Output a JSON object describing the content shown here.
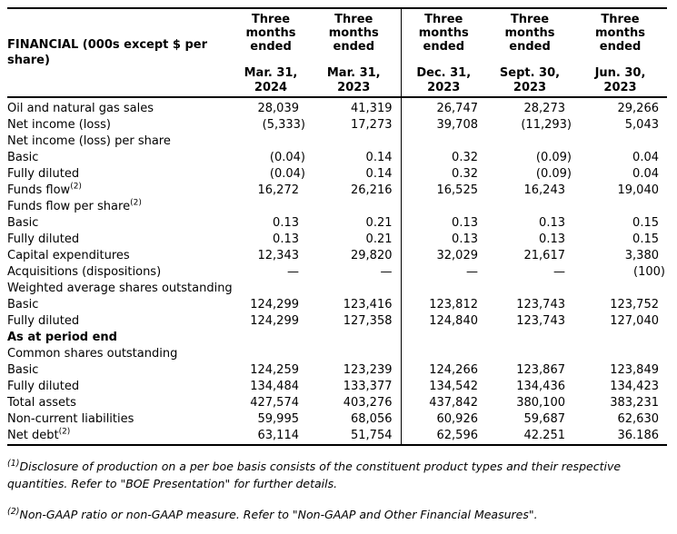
{
  "table": {
    "corner_label": "FINANCIAL (000s except $ per share)",
    "columns": [
      {
        "period": "Three months ended",
        "date": "Mar. 31, 2024"
      },
      {
        "period": "Three months ended",
        "date": "Mar. 31, 2023"
      },
      {
        "period": "Three months ended",
        "date": "Dec. 31, 2023"
      },
      {
        "period": "Three months ended",
        "date": "Sept. 30, 2023"
      },
      {
        "period": "Three months ended",
        "date": "Jun. 30, 2023"
      }
    ],
    "rows": [
      {
        "label": "Oil and natural gas sales",
        "values": [
          "28,039",
          "41,319",
          "26,747",
          "28,273",
          "29,266"
        ]
      },
      {
        "label": "Net income (loss)",
        "values": [
          "(5,333)",
          "17,273",
          "39,708",
          "(11,293)",
          "5,043"
        ]
      },
      {
        "label": "Net income (loss) per share",
        "values": [
          "",
          "",
          "",
          "",
          ""
        ]
      },
      {
        "label": "Basic",
        "values": [
          "(0.04)",
          "0.14",
          "0.32",
          "(0.09)",
          "0.04"
        ]
      },
      {
        "label": "Fully diluted",
        "values": [
          "(0.04)",
          "0.14",
          "0.32",
          "(0.09)",
          "0.04"
        ]
      },
      {
        "label": "Funds flow",
        "sup": "(2)",
        "values": [
          "16,272",
          "26,216",
          "16,525",
          "16,243",
          "19,040"
        ]
      },
      {
        "label": "Funds flow per share",
        "sup": "(2)",
        "values": [
          "",
          "",
          "",
          "",
          ""
        ]
      },
      {
        "label": "Basic",
        "values": [
          "0.13",
          "0.21",
          "0.13",
          "0.13",
          "0.15"
        ]
      },
      {
        "label": "Fully diluted",
        "values": [
          "0.13",
          "0.21",
          "0.13",
          "0.13",
          "0.15"
        ]
      },
      {
        "label": "Capital expenditures",
        "values": [
          "12,343",
          "29,820",
          "32,029",
          "21,617",
          "3,380"
        ]
      },
      {
        "label": "Acquisitions (dispositions)",
        "values": [
          "—",
          "—",
          "—",
          "—",
          "(100)"
        ]
      },
      {
        "label": "Weighted average shares outstanding",
        "values": [
          "",
          "",
          "",
          "",
          ""
        ]
      },
      {
        "label": "Basic",
        "values": [
          "124,299",
          "123,416",
          "123,812",
          "123,743",
          "123,752"
        ]
      },
      {
        "label": "Fully diluted",
        "values": [
          "124,299",
          "127,358",
          "124,840",
          "123,743",
          "127,040"
        ]
      },
      {
        "label": "As at period end",
        "bold": true,
        "values": [
          "",
          "",
          "",
          "",
          ""
        ]
      },
      {
        "label": "Common shares outstanding",
        "values": [
          "",
          "",
          "",
          "",
          ""
        ]
      },
      {
        "label": "Basic",
        "values": [
          "124,259",
          "123,239",
          "124,266",
          "123,867",
          "123,849"
        ]
      },
      {
        "label": "Fully diluted",
        "values": [
          "134,484",
          "133,377",
          "134,542",
          "134,436",
          "134,423"
        ]
      },
      {
        "label": "Total assets",
        "values": [
          "427,574",
          "403,276",
          "437,842",
          "380,100",
          "383,231"
        ]
      },
      {
        "label": "Non-current liabilities",
        "values": [
          "59,995",
          "68,056",
          "60,926",
          "59,687",
          "62,630"
        ]
      },
      {
        "label": "Net debt",
        "sup": "(2)",
        "values": [
          "63,114",
          "51,754",
          "62,596",
          "42.251",
          "36.186"
        ]
      }
    ]
  },
  "footnotes": [
    {
      "marker": "(1)",
      "text": "Disclosure of production on a per boe basis consists of the constituent product types and their respective quantities. Refer to \"BOE Presentation\" for further details."
    },
    {
      "marker": "(2)",
      "text": "Non-GAAP ratio or non-GAAP measure. Refer to \"Non-GAAP and Other Financial Measures\"."
    }
  ]
}
